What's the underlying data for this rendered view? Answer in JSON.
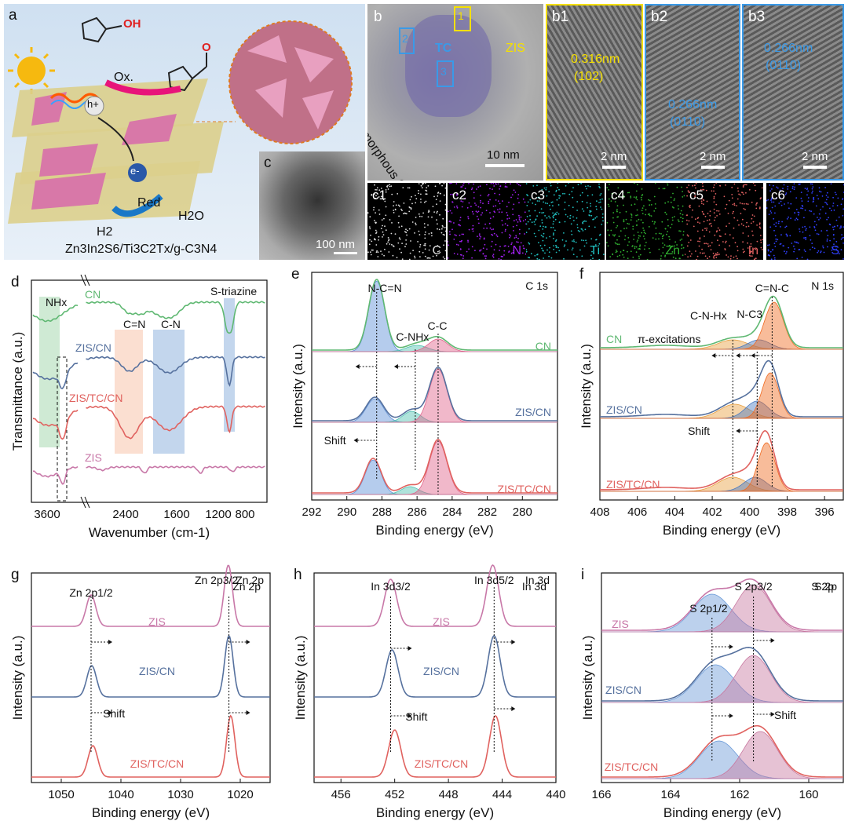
{
  "panel_a": {
    "letter": "a",
    "ox": "Ox.",
    "red": "Red",
    "h2o": "H2O",
    "h2": "H2",
    "hole": "h+",
    "electron": "e-",
    "formula": "Zn3In2S6/Ti3C2Tx/g-C3N4"
  },
  "panel_b": {
    "letter": "b",
    "box1": "1",
    "box2": "2",
    "box3": "3",
    "tc": "TC",
    "zis": "ZIS",
    "amorphous": "Amorphous CN",
    "scale": "10 nm"
  },
  "panel_b1": {
    "letter": "b1",
    "spacing": "0.316nm",
    "plane": "(102)",
    "scale": "2 nm"
  },
  "panel_b2": {
    "letter": "b2",
    "spacing": "0.266nm",
    "plane": "(0110)",
    "scale": "2 nm"
  },
  "panel_b3": {
    "letter": "b3",
    "spacing": "0.266nm",
    "plane": "(0110)",
    "scale": "2 nm"
  },
  "panel_c": {
    "letter": "c",
    "scale": "100 nm"
  },
  "eds_maps": [
    {
      "tag": "c1",
      "element": "C",
      "color": "#dddddd"
    },
    {
      "tag": "c2",
      "element": "N",
      "color": "#a020f0"
    },
    {
      "tag": "c3",
      "element": "Ti",
      "color": "#20c0c0"
    },
    {
      "tag": "c4",
      "element": "Zn",
      "color": "#30b030"
    },
    {
      "tag": "c5",
      "element": "In",
      "color": "#e06060"
    },
    {
      "tag": "c6",
      "element": "S",
      "color": "#3040ff"
    }
  ],
  "colors": {
    "green": "#5fb872",
    "blue": "#56719e",
    "red": "#e0625f",
    "pink": "#c878a8",
    "ftir_green": "#5fb872"
  },
  "chart_data": [
    {
      "id": "d",
      "type": "line",
      "letter": "d",
      "xlabel": "Wavenumber (cm-1)",
      "ylabel": "Transmittance (a.u.)",
      "xticks": [
        "3600",
        "2400",
        "1600",
        "1200",
        "800"
      ],
      "series": [
        {
          "name": "CN"
        },
        {
          "name": "ZIS/CN"
        },
        {
          "name": "ZIS/TC/CN"
        },
        {
          "name": "ZIS"
        }
      ],
      "annotations": [
        "NHx",
        "C=N",
        "C-N",
        "S-triazine"
      ]
    },
    {
      "id": "e",
      "type": "line",
      "letter": "e",
      "element": "C 1s",
      "xlabel": "Binding energy (eV)",
      "ylabel": "Intensity (a.u.)",
      "xlim": [
        292,
        278
      ],
      "xticks": [
        292,
        290,
        288,
        286,
        284,
        282,
        280
      ],
      "peaks": {
        "CN": [
          288.3,
          284.8
        ],
        "ZIS/CN": [
          288.4,
          286.3,
          284.8
        ],
        "ZIS/TC/CN": [
          288.5,
          286.4,
          284.8
        ]
      },
      "series": [
        {
          "name": "CN"
        },
        {
          "name": "ZIS/CN"
        },
        {
          "name": "ZIS/TC/CN"
        }
      ],
      "annotations": [
        "N-C=N",
        "C-NHx",
        "C-C",
        "Shift"
      ]
    },
    {
      "id": "f",
      "type": "line",
      "letter": "f",
      "element": "N 1s",
      "xlabel": "Binding energy (eV)",
      "ylabel": "Intensity (a.u.)",
      "xlim": [
        408,
        395
      ],
      "xticks": [
        408,
        406,
        404,
        402,
        400,
        398,
        396
      ],
      "peaks": {
        "CN": [
          400.9,
          399.5,
          398.7
        ],
        "ZIS/CN": [
          400.8,
          399.6,
          398.9
        ],
        "ZIS/TC/CN": [
          400.9,
          399.7,
          399.1
        ]
      },
      "series": [
        {
          "name": "CN"
        },
        {
          "name": "ZIS/CN"
        },
        {
          "name": "ZIS/TC/CN"
        }
      ],
      "annotations": [
        "C=N-C",
        "C-N-Hx",
        "N-C3",
        "π-excitations",
        "Shift"
      ]
    },
    {
      "id": "g",
      "type": "line",
      "letter": "g",
      "element": "Zn 2p",
      "xlabel": "Binding energy (eV)",
      "ylabel": "Intensity (a.u.)",
      "xlim": [
        1055,
        1015
      ],
      "xticks": [
        1050,
        1040,
        1030,
        1020
      ],
      "peaks": {
        "ZIS": [
          1045.0,
          1022.0
        ],
        "ZIS/CN": [
          1044.9,
          1021.9
        ],
        "ZIS/TC/CN": [
          1044.7,
          1021.6
        ]
      },
      "series": [
        {
          "name": "ZIS"
        },
        {
          "name": "ZIS/CN"
        },
        {
          "name": "ZIS/TC/CN"
        }
      ],
      "annotations": [
        "Zn 2p1/2",
        "Zn 2p3/2",
        "Shift"
      ]
    },
    {
      "id": "h",
      "type": "line",
      "letter": "h",
      "element": "In 3d",
      "xlabel": "Binding energy (eV)",
      "ylabel": "Intensity (a.u.)",
      "xlim": [
        458,
        440
      ],
      "xticks": [
        456,
        452,
        448,
        444,
        440
      ],
      "peaks": {
        "ZIS": [
          452.3,
          444.7
        ],
        "ZIS/CN": [
          452.2,
          444.6
        ],
        "ZIS/TC/CN": [
          452.0,
          444.5
        ]
      },
      "series": [
        {
          "name": "ZIS"
        },
        {
          "name": "ZIS/CN"
        },
        {
          "name": "ZIS/TC/CN"
        }
      ],
      "annotations": [
        "In 3d3/2",
        "In 3d5/2",
        "Shift"
      ]
    },
    {
      "id": "i",
      "type": "line",
      "letter": "i",
      "element": "S 2p",
      "xlabel": "Binding energy (eV)",
      "ylabel": "Intensity (a.u.)",
      "xlim": [
        166,
        159
      ],
      "xticks": [
        166,
        164,
        162,
        160
      ],
      "peaks": {
        "ZIS": [
          162.8,
          161.6
        ],
        "ZIS/CN": [
          162.7,
          161.6
        ],
        "ZIS/TC/CN": [
          162.6,
          161.4
        ]
      },
      "series": [
        {
          "name": "ZIS"
        },
        {
          "name": "ZIS/CN"
        },
        {
          "name": "ZIS/TC/CN"
        }
      ],
      "annotations": [
        "S 2p1/2",
        "S 2p3/2",
        "Shift"
      ]
    }
  ]
}
